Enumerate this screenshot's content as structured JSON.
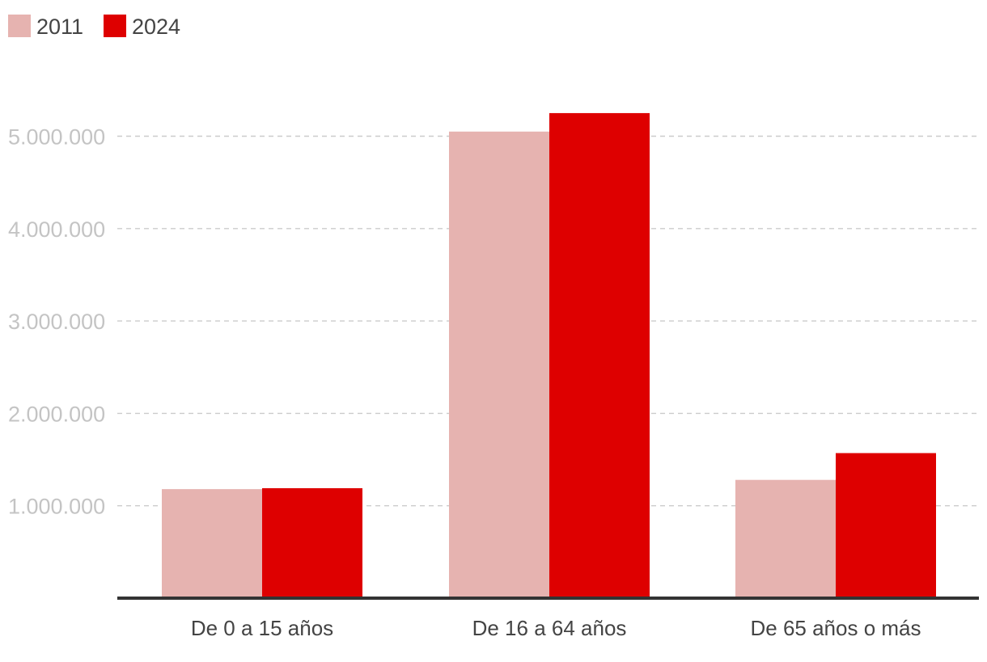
{
  "chart_data": {
    "type": "bar",
    "categories": [
      "De 0 a 15 años",
      "De 16 a 64 años",
      "De 65 años o más"
    ],
    "series": [
      {
        "name": "2011",
        "values": [
          1180000,
          5050000,
          1280000
        ]
      },
      {
        "name": "2024",
        "values": [
          1190000,
          5250000,
          1570000
        ]
      }
    ],
    "colors": [
      "#e6b3b0",
      "#de0000"
    ],
    "y_ticks": [
      1000000,
      2000000,
      3000000,
      4000000,
      5000000
    ],
    "y_tick_labels": [
      "1.000.000",
      "2.000.000",
      "3.000.000",
      "4.000.000",
      "5.000.000"
    ],
    "ylim": [
      0,
      5800000
    ],
    "grid": true,
    "legend_position": "top-left"
  }
}
